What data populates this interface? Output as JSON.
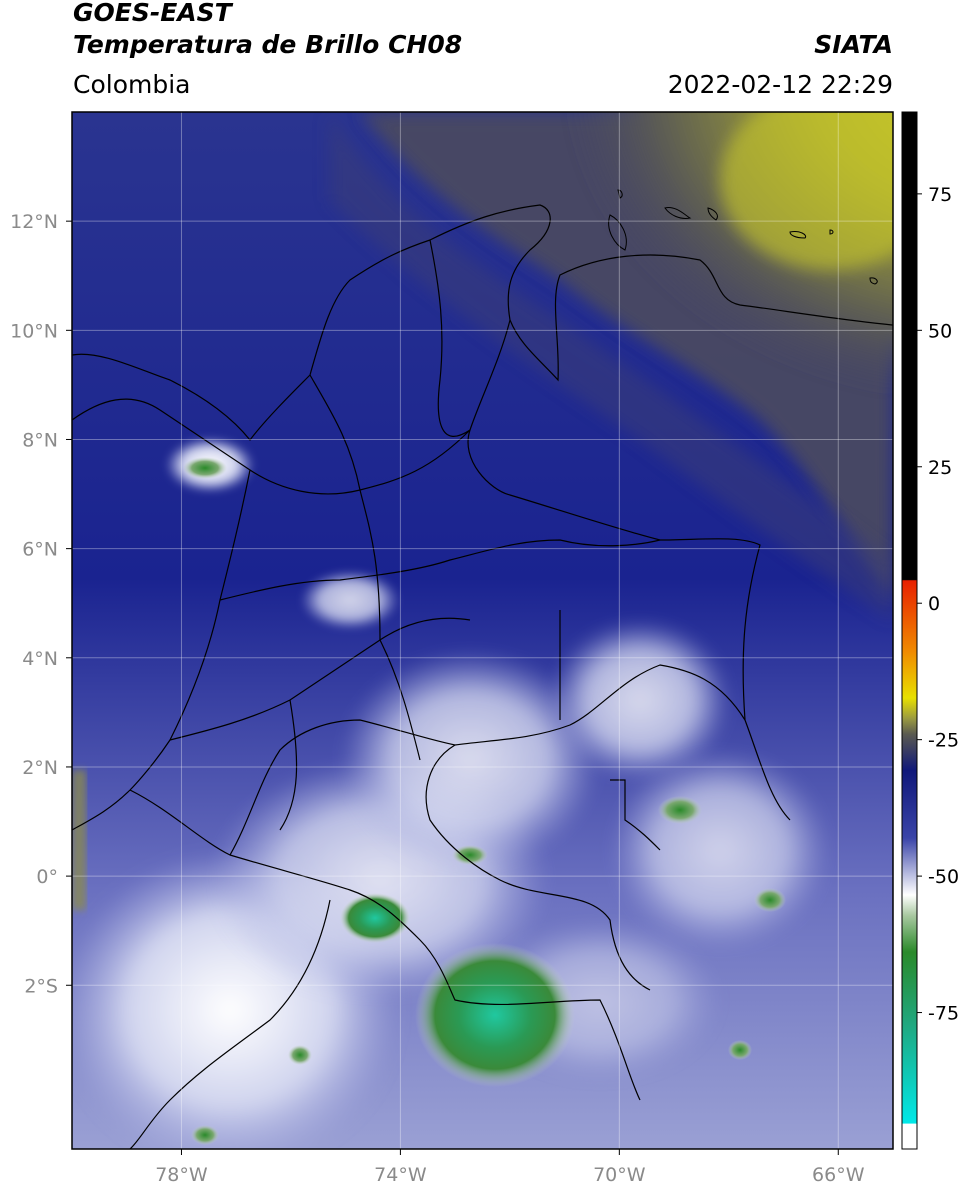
{
  "header": {
    "satellite": "GOES-EAST",
    "product": "Temperatura de Brillo CH08",
    "region": "Colombia",
    "organization": "SIATA",
    "timestamp": "2022-02-12 22:29"
  },
  "map": {
    "lon_range": [
      -80,
      -65
    ],
    "lat_range": [
      -5,
      14
    ],
    "lon_ticks": [
      {
        "value": -78,
        "label": "78°W"
      },
      {
        "value": -74,
        "label": "74°W"
      },
      {
        "value": -70,
        "label": "70°W"
      },
      {
        "value": -66,
        "label": "66°W"
      }
    ],
    "lat_ticks": [
      {
        "value": 12,
        "label": "12°N"
      },
      {
        "value": 10,
        "label": "10°N"
      },
      {
        "value": 8,
        "label": "8°N"
      },
      {
        "value": 6,
        "label": "6°N"
      },
      {
        "value": 4,
        "label": "4°N"
      },
      {
        "value": 2,
        "label": "2°N"
      },
      {
        "value": 0,
        "label": "0°"
      },
      {
        "value": -2,
        "label": "2°S"
      }
    ],
    "grid": true
  },
  "colorbar": {
    "range": [
      -100,
      90
    ],
    "ticks": [
      {
        "value": 75,
        "label": "75"
      },
      {
        "value": 50,
        "label": "50"
      },
      {
        "value": 25,
        "label": "25"
      },
      {
        "value": 0,
        "label": "0"
      },
      {
        "value": -25,
        "label": "-25"
      },
      {
        "value": -50,
        "label": "-50"
      },
      {
        "value": -75,
        "label": "-75"
      }
    ],
    "colors": {
      "black": "#000000",
      "red": "#e82000",
      "orange": "#f08a00",
      "yellow": "#e8e000",
      "olive": "#7a7a3a",
      "gray": "#4a4a60",
      "navy": "#10187a",
      "blue": "#3a44a8",
      "lavender": "#b8bce0",
      "white": "#ffffff",
      "green": "#2a8a2a",
      "teal": "#20c8a0",
      "cyan": "#00e8e8"
    }
  }
}
